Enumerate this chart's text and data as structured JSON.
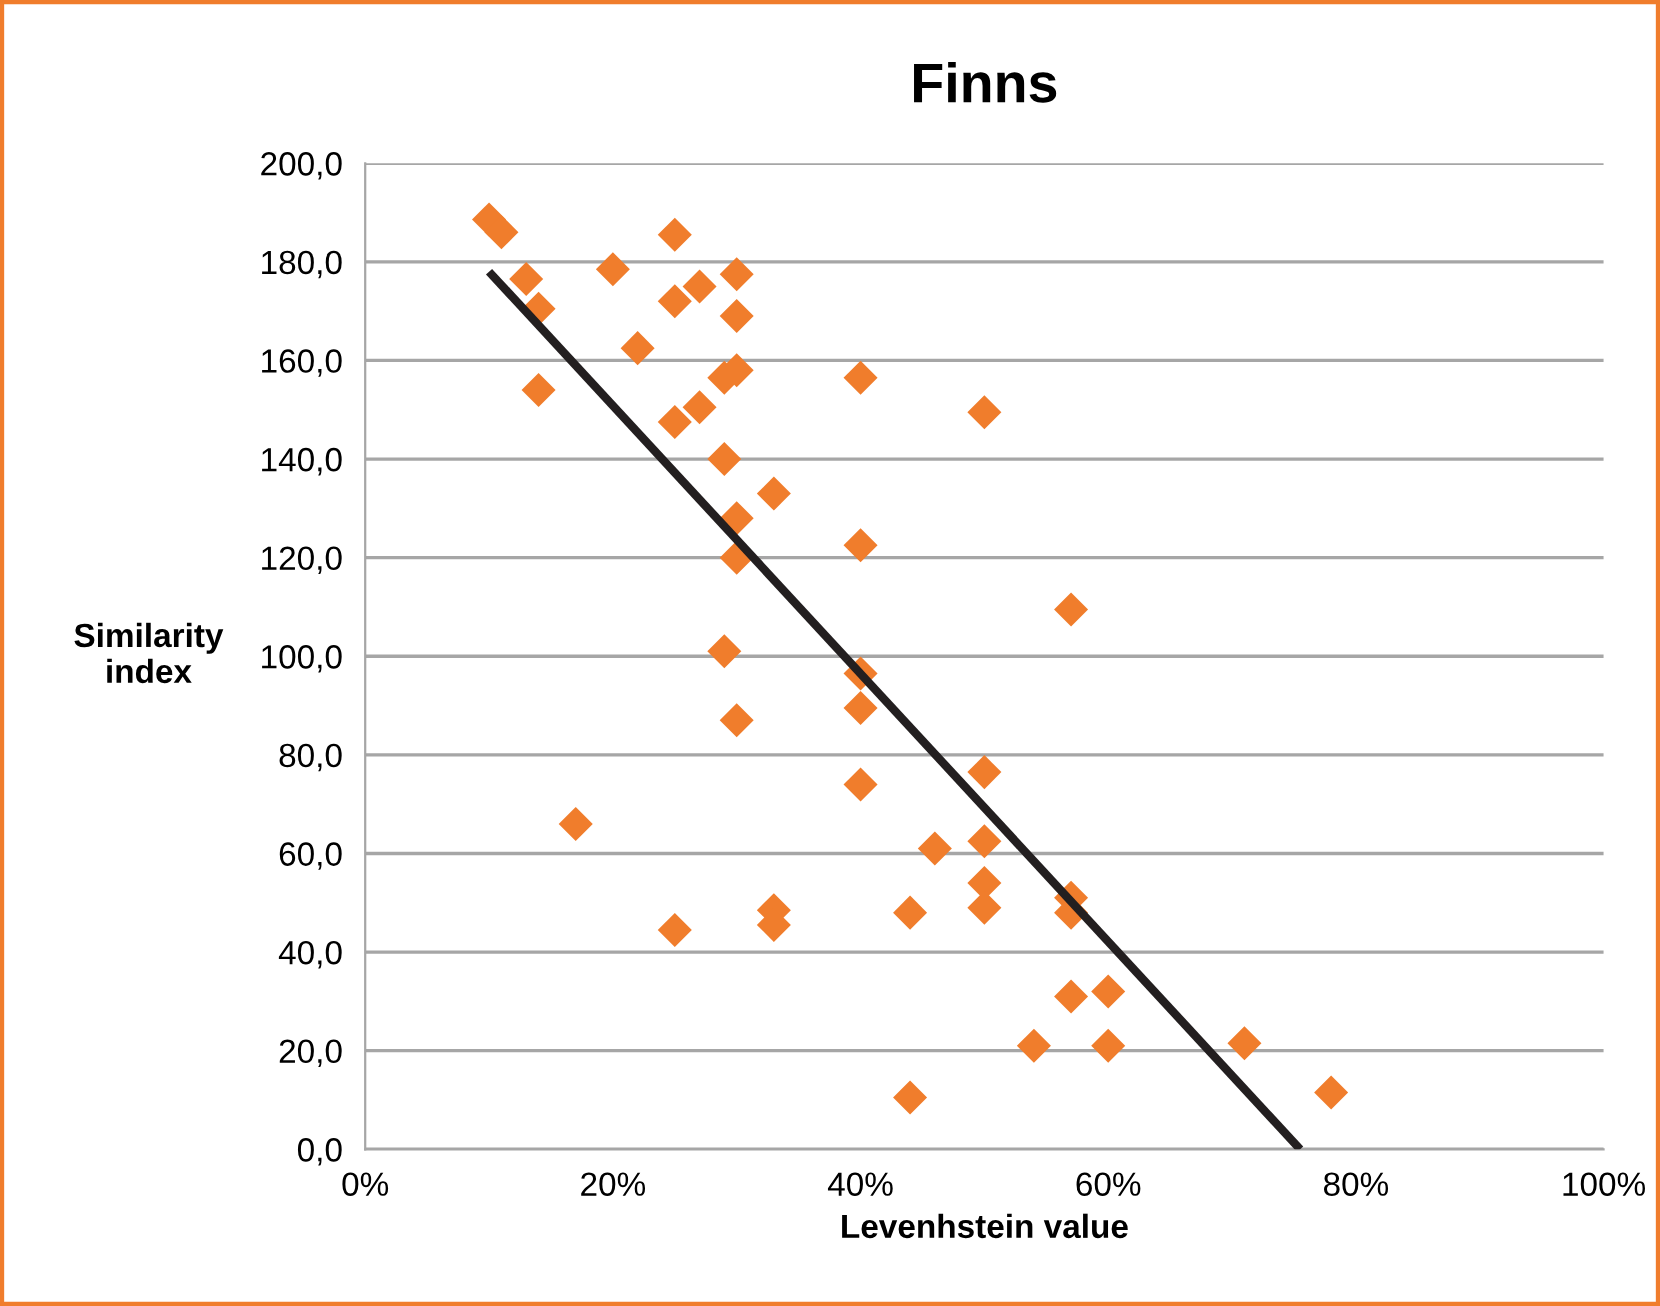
{
  "chart_data": {
    "type": "scatter",
    "title": "Finns",
    "xlabel": "Levenhstein value",
    "ylabel": "Similarity\nindex",
    "marker": "diamond",
    "grid": "y",
    "legend": false,
    "xlim": [
      0,
      1
    ],
    "ylim": [
      0,
      200
    ],
    "xticks": [
      {
        "value": 0,
        "label": "0%"
      },
      {
        "value": 0.2,
        "label": "20%"
      },
      {
        "value": 0.4,
        "label": "40%"
      },
      {
        "value": 0.6,
        "label": "60%"
      },
      {
        "value": 0.8,
        "label": "80%"
      },
      {
        "value": 1,
        "label": "100%"
      }
    ],
    "yticks": [
      {
        "value": 0,
        "label": "0,0"
      },
      {
        "value": 20,
        "label": "20,0"
      },
      {
        "value": 40,
        "label": "40,0"
      },
      {
        "value": 60,
        "label": "60,0"
      },
      {
        "value": 80,
        "label": "80,0"
      },
      {
        "value": 100,
        "label": "100,0"
      },
      {
        "value": 120,
        "label": "120,0"
      },
      {
        "value": 140,
        "label": "140,0"
      },
      {
        "value": 160,
        "label": "160,0"
      },
      {
        "value": 180,
        "label": "180,0"
      },
      {
        "value": 200,
        "label": "200,0"
      }
    ],
    "series": [
      {
        "color": "#f07d2c",
        "x": [
          0.1,
          0.11,
          0.13,
          0.14,
          0.14,
          0.2,
          0.22,
          0.25,
          0.25,
          0.27,
          0.3,
          0.3,
          0.27,
          0.25,
          0.29,
          0.3,
          0.29,
          0.33,
          0.3,
          0.3,
          0.29,
          0.3,
          0.17,
          0.25,
          0.33,
          0.33,
          0.4,
          0.5,
          0.4,
          0.57,
          0.4,
          0.4,
          0.4,
          0.5,
          0.46,
          0.5,
          0.44,
          0.5,
          0.5,
          0.57,
          0.57,
          0.57,
          0.6,
          0.54,
          0.6,
          0.71,
          0.78,
          0.44
        ],
        "values": [
          188.6,
          186,
          176.5,
          170.5,
          154,
          178.5,
          162.5,
          185.5,
          172,
          175,
          177.5,
          169,
          150.5,
          147.5,
          156.5,
          158,
          140,
          133,
          128,
          120,
          101,
          87,
          66,
          44.5,
          48.5,
          45.5,
          156.5,
          149.5,
          122.5,
          109.5,
          96.5,
          89.5,
          74,
          76.5,
          61,
          62.5,
          48,
          54,
          49,
          51,
          48,
          31,
          32,
          21,
          21,
          21.5,
          11.5,
          10.5
        ]
      },
      {
        "type": "line",
        "color": "#231f20",
        "marker": "none",
        "x": [
          0.1,
          0.755
        ],
        "values": [
          178,
          0
        ]
      }
    ]
  }
}
